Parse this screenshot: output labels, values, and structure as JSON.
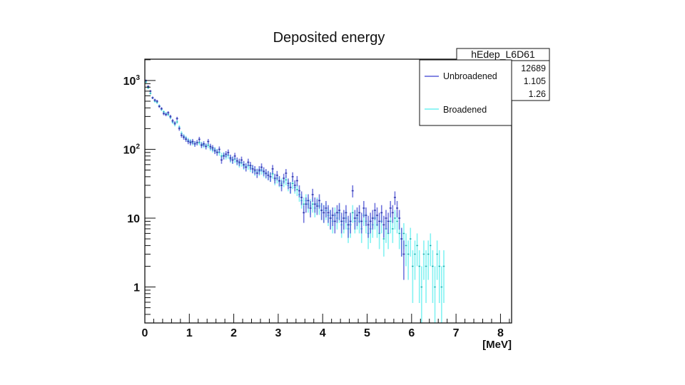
{
  "chart_data": {
    "type": "scatter",
    "title": "Deposited energy",
    "xlabel": "[MeV]",
    "ylabel": "",
    "xlim": [
      0,
      8.25
    ],
    "ylim": [
      0.3,
      2040
    ],
    "yscale": "log",
    "x_ticks": [
      "0",
      "1",
      "2",
      "3",
      "4",
      "5",
      "6",
      "7",
      "8"
    ],
    "y_ticks": [
      {
        "value": 1000,
        "base": "10",
        "exp": "3"
      },
      {
        "value": 100,
        "base": "10",
        "exp": "2"
      },
      {
        "value": 10,
        "base": "10",
        "exp": ""
      },
      {
        "value": 1,
        "base": "1",
        "exp": ""
      }
    ],
    "bin_width": 0.05,
    "legend": {
      "position": "top-right",
      "entries": [
        {
          "label": "Unbroadened",
          "color": "#5a5fd8"
        },
        {
          "label": "Broadened",
          "color": "#6ef0f0"
        }
      ]
    },
    "stats_box": {
      "name": "hEdep_L6D61",
      "values": [
        "12689",
        "1.105",
        "1.26"
      ]
    },
    "series": [
      {
        "name": "Unbroadened",
        "color": "#5a5fd8",
        "x_start": 0.025,
        "values": [
          1000,
          820,
          700,
          560,
          520,
          500,
          420,
          390,
          330,
          320,
          340,
          300,
          260,
          240,
          280,
          200,
          160,
          150,
          140,
          130,
          125,
          130,
          120,
          125,
          140,
          115,
          120,
          110,
          130,
          110,
          105,
          95,
          90,
          100,
          70,
          80,
          85,
          90,
          75,
          70,
          80,
          68,
          65,
          70,
          60,
          55,
          65,
          58,
          52,
          50,
          45,
          50,
          55,
          48,
          45,
          42,
          40,
          52,
          38,
          42,
          35,
          30,
          38,
          45,
          32,
          28,
          40,
          30,
          35,
          25,
          20,
          12,
          16,
          18,
          14,
          22,
          16,
          15,
          18,
          13,
          12,
          14,
          12,
          10,
          11,
          9,
          12,
          13,
          9,
          10,
          12,
          8,
          9,
          25,
          10,
          11,
          12,
          9,
          14,
          11,
          8,
          9,
          10,
          13,
          11,
          9,
          12,
          8,
          10,
          9,
          14,
          12,
          20,
          14,
          10,
          5,
          3,
          0,
          0,
          0,
          0,
          0,
          0,
          0,
          0,
          0,
          0,
          0,
          0,
          0,
          0,
          0,
          0,
          0,
          0,
          0,
          0,
          0,
          0
        ]
      },
      {
        "name": "Broadened",
        "color": "#6ef0f0",
        "x_start": 0.025,
        "values": [
          950,
          780,
          650,
          560,
          500,
          480,
          430,
          380,
          350,
          330,
          320,
          290,
          250,
          230,
          250,
          210,
          170,
          155,
          145,
          135,
          130,
          125,
          120,
          125,
          125,
          118,
          115,
          112,
          115,
          105,
          100,
          98,
          92,
          90,
          80,
          82,
          80,
          82,
          72,
          70,
          72,
          66,
          62,
          64,
          58,
          56,
          58,
          54,
          52,
          48,
          46,
          48,
          50,
          46,
          44,
          42,
          40,
          44,
          36,
          38,
          34,
          32,
          34,
          36,
          30,
          28,
          32,
          28,
          26,
          22,
          18,
          16,
          18,
          16,
          15,
          16,
          14,
          16,
          15,
          13,
          12,
          13,
          11,
          10,
          9,
          11,
          10,
          12,
          8,
          9,
          10,
          7,
          8,
          12,
          9,
          10,
          9,
          7,
          11,
          9,
          6,
          7,
          8,
          10,
          8,
          6,
          9,
          5,
          7,
          6,
          9,
          7,
          10,
          9,
          6,
          5,
          6,
          4,
          3,
          5,
          2,
          3,
          4,
          2,
          1,
          3,
          2,
          3,
          4,
          2,
          1,
          3,
          2,
          1,
          2,
          0,
          0,
          0,
          0
        ]
      }
    ]
  }
}
